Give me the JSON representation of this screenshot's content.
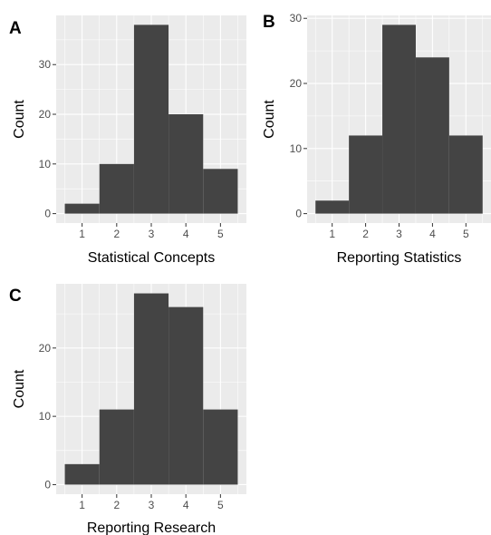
{
  "chart_data": [
    {
      "type": "bar",
      "tag": "A",
      "xlabel": "Statistical Concepts",
      "ylabel": "Count",
      "bins": [
        [
          0.5,
          1.5
        ],
        [
          1.5,
          2.5
        ],
        [
          2.5,
          3.5
        ],
        [
          3.5,
          4.5
        ],
        [
          4.5,
          5.5
        ]
      ],
      "values": [
        2,
        10,
        38,
        20,
        9
      ],
      "xticks": [
        1,
        2,
        3,
        4,
        5
      ],
      "yticks": [
        0,
        10,
        20,
        30
      ],
      "xlim": [
        0.25,
        5.75
      ],
      "ylim": [
        -1.9,
        39.9
      ],
      "grid": true
    },
    {
      "type": "bar",
      "tag": "B",
      "xlabel": "Reporting Statistics",
      "ylabel": "Count",
      "bins": [
        [
          0.5,
          1.5
        ],
        [
          1.5,
          2.5
        ],
        [
          2.5,
          3.5
        ],
        [
          3.5,
          4.5
        ],
        [
          4.5,
          5.5
        ]
      ],
      "values": [
        2,
        12,
        29,
        24,
        12
      ],
      "xticks": [
        1,
        2,
        3,
        4,
        5
      ],
      "yticks": [
        0,
        10,
        20,
        30
      ],
      "xlim": [
        0.25,
        5.75
      ],
      "ylim": [
        -1.45,
        30.45
      ],
      "grid": true
    },
    {
      "type": "bar",
      "tag": "C",
      "xlabel": "Reporting Research",
      "ylabel": "Count",
      "bins": [
        [
          0.5,
          1.5
        ],
        [
          1.5,
          2.5
        ],
        [
          2.5,
          3.5
        ],
        [
          3.5,
          4.5
        ],
        [
          4.5,
          5.5
        ]
      ],
      "values": [
        3,
        11,
        28,
        26,
        11
      ],
      "xticks": [
        1,
        2,
        3,
        4,
        5
      ],
      "yticks": [
        0,
        10,
        20
      ],
      "xlim": [
        0.25,
        5.75
      ],
      "ylim": [
        -1.4,
        29.4
      ],
      "grid": true
    }
  ]
}
